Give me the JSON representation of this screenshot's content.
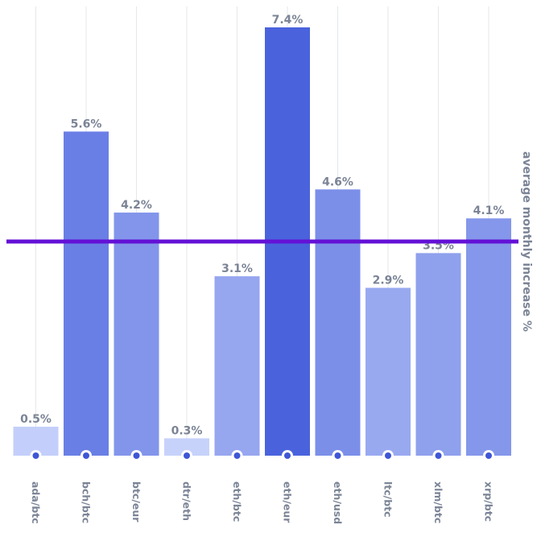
{
  "chart_data": {
    "type": "bar",
    "categories": [
      "ada/btc",
      "bch/btc",
      "btc/eur",
      "dtr/eth",
      "eth/btc",
      "eth/eur",
      "eth/usd",
      "ltc/btc",
      "xlm/btc",
      "xrp/btc"
    ],
    "values": [
      0.5,
      5.6,
      4.2,
      0.3,
      3.1,
      7.4,
      4.6,
      2.9,
      3.5,
      4.1
    ],
    "value_labels": [
      "0.5%",
      "5.6%",
      "4.2%",
      "0.3%",
      "3.1%",
      "7.4%",
      "4.6%",
      "2.9%",
      "3.5%",
      "4.1%"
    ],
    "ylabel": "average monthly increase %",
    "ylim": [
      0,
      7.4
    ],
    "reference_line": 3.7,
    "grid": true,
    "colors": {
      "bar_light": "#c7d2fb",
      "bar_dark": "#4a63dd",
      "reference_line": "#6311d6",
      "label_text": "#7b8496",
      "grid": "#e5e7eb",
      "dot": "#3e56d6"
    }
  }
}
